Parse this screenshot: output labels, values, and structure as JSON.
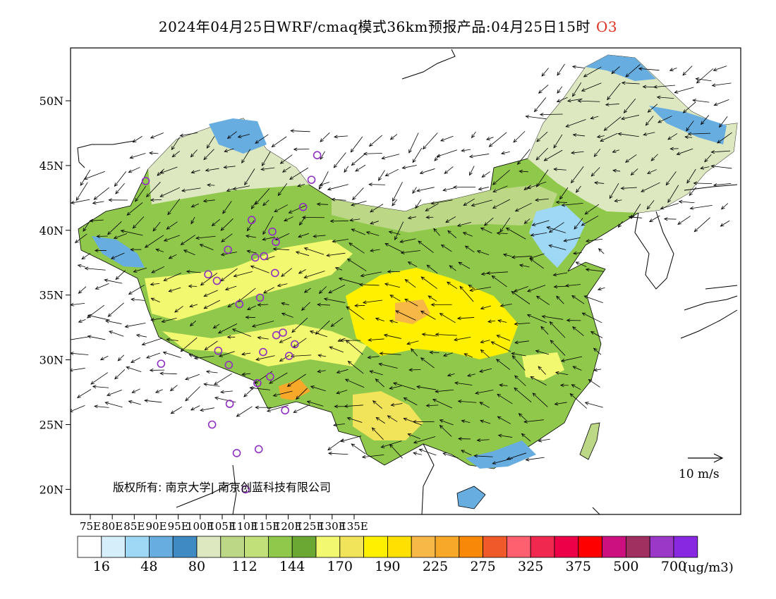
{
  "header": {
    "title": "2024年04月25日WRF/cmaq模式36km预报产品:04月25日15时",
    "species": "O3"
  },
  "map": {
    "lat_ticks": [
      "50N",
      "45N",
      "40N",
      "35N",
      "30N",
      "25N",
      "20N"
    ],
    "lon_ticks": [
      "75E",
      "80E",
      "85E",
      "90E",
      "95E",
      "100E",
      "105E",
      "110E",
      "115E",
      "120E",
      "125E",
      "130E",
      "135E"
    ],
    "copyright": "版权所有: 南京大学| 南京创蓝科技有限公司",
    "wind_reference": "10 m/s",
    "stations": [
      {
        "lon": 87.6,
        "lat": 43.8
      },
      {
        "lon": 91.1,
        "lat": 29.7
      },
      {
        "lon": 101.8,
        "lat": 36.6
      },
      {
        "lon": 103.8,
        "lat": 36.1
      },
      {
        "lon": 106.3,
        "lat": 38.5
      },
      {
        "lon": 111.7,
        "lat": 40.8
      },
      {
        "lon": 112.5,
        "lat": 37.9
      },
      {
        "lon": 114.5,
        "lat": 38.0
      },
      {
        "lon": 116.4,
        "lat": 39.9
      },
      {
        "lon": 117.2,
        "lat": 39.1
      },
      {
        "lon": 117.0,
        "lat": 36.7
      },
      {
        "lon": 113.6,
        "lat": 34.8
      },
      {
        "lon": 108.9,
        "lat": 34.3
      },
      {
        "lon": 104.1,
        "lat": 30.7
      },
      {
        "lon": 106.5,
        "lat": 29.6
      },
      {
        "lon": 114.3,
        "lat": 30.6
      },
      {
        "lon": 117.3,
        "lat": 31.9
      },
      {
        "lon": 118.8,
        "lat": 32.1
      },
      {
        "lon": 121.5,
        "lat": 31.2
      },
      {
        "lon": 120.2,
        "lat": 30.3
      },
      {
        "lon": 115.9,
        "lat": 28.7
      },
      {
        "lon": 113.0,
        "lat": 28.2
      },
      {
        "lon": 106.7,
        "lat": 26.6
      },
      {
        "lon": 102.7,
        "lat": 25.0
      },
      {
        "lon": 108.3,
        "lat": 22.8
      },
      {
        "lon": 113.3,
        "lat": 23.1
      },
      {
        "lon": 119.3,
        "lat": 26.1
      },
      {
        "lon": 110.3,
        "lat": 20.0
      },
      {
        "lon": 123.4,
        "lat": 41.8
      },
      {
        "lon": 125.3,
        "lat": 43.9
      },
      {
        "lon": 126.6,
        "lat": 45.8
      }
    ]
  },
  "colorbar": {
    "colors": [
      "#ffffff",
      "#d6eefa",
      "#9fd8f5",
      "#68ade0",
      "#3f8ac2",
      "#dde8c0",
      "#bcd886",
      "#c2e07a",
      "#8fc84a",
      "#6aa833",
      "#f2f870",
      "#f2e45a",
      "#fff000",
      "#ffe000",
      "#f8b848",
      "#f8a828",
      "#f88808",
      "#f05a2a",
      "#ff6070",
      "#f02850",
      "#ee0048",
      "#ff0000",
      "#cc1080",
      "#a03060",
      "#9c38c8",
      "#8828e0"
    ],
    "labels": [
      "16",
      "48",
      "80",
      "112",
      "144",
      "170",
      "190",
      "225",
      "275",
      "325",
      "375",
      "500",
      "700"
    ],
    "unit": "(ug/m3)"
  }
}
